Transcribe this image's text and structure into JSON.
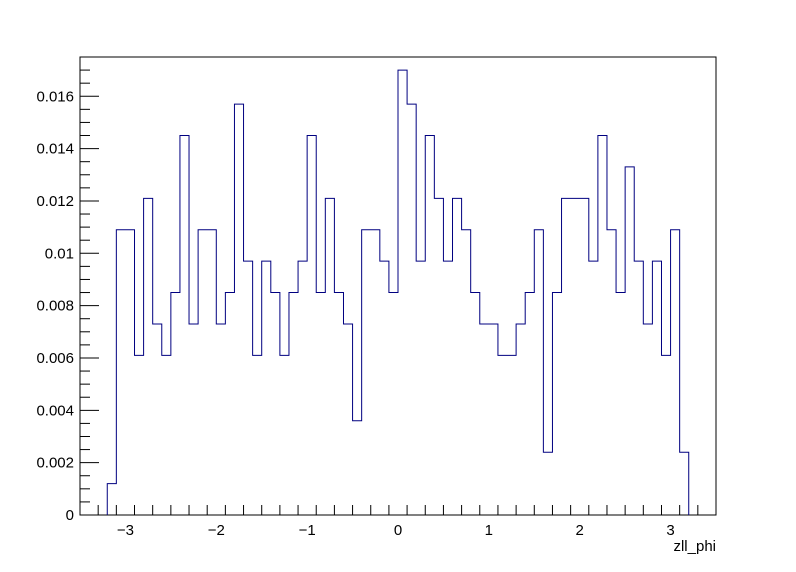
{
  "chart_data": {
    "type": "histogram",
    "title": "",
    "xlabel": "zll_phi",
    "ylabel": "",
    "xlim": [
      -3.5,
      3.5
    ],
    "ylim": [
      0,
      0.0175
    ],
    "grid": false,
    "legend": "none",
    "line_color": "#000080",
    "x_ticks": [
      {
        "value": -3,
        "label": "−3"
      },
      {
        "value": -2,
        "label": "−2"
      },
      {
        "value": -1,
        "label": "−1"
      },
      {
        "value": 0,
        "label": "0"
      },
      {
        "value": 1,
        "label": "1"
      },
      {
        "value": 2,
        "label": "2"
      },
      {
        "value": 3,
        "label": "3"
      }
    ],
    "y_ticks": [
      {
        "value": 0,
        "label": "0"
      },
      {
        "value": 0.002,
        "label": "0.002"
      },
      {
        "value": 0.004,
        "label": "0.004"
      },
      {
        "value": 0.006,
        "label": "0.006"
      },
      {
        "value": 0.008,
        "label": "0.008"
      },
      {
        "value": 0.01,
        "label": "0.01"
      },
      {
        "value": 0.012,
        "label": "0.012"
      },
      {
        "value": 0.014,
        "label": "0.014"
      },
      {
        "value": 0.016,
        "label": "0.016"
      }
    ],
    "bin_low": -3.2,
    "bin_high": 3.2,
    "bin_values": [
      0.0012,
      0.0109,
      0.0109,
      0.0061,
      0.0121,
      0.0073,
      0.0061,
      0.0085,
      0.0145,
      0.0073,
      0.0109,
      0.0109,
      0.0073,
      0.0085,
      0.0157,
      0.0097,
      0.0061,
      0.0097,
      0.0085,
      0.0061,
      0.0085,
      0.0097,
      0.0145,
      0.0085,
      0.0121,
      0.0085,
      0.0073,
      0.0036,
      0.0109,
      0.0109,
      0.0097,
      0.0085,
      0.017,
      0.0157,
      0.0097,
      0.0145,
      0.0121,
      0.0097,
      0.0121,
      0.0109,
      0.0085,
      0.0073,
      0.0073,
      0.0061,
      0.0061,
      0.0073,
      0.0085,
      0.0109,
      0.0024,
      0.0085,
      0.0121,
      0.0121,
      0.0121,
      0.0097,
      0.0145,
      0.0109,
      0.0085,
      0.0133,
      0.0097,
      0.0073,
      0.0097,
      0.0061,
      0.0109,
      0.0024
    ]
  }
}
